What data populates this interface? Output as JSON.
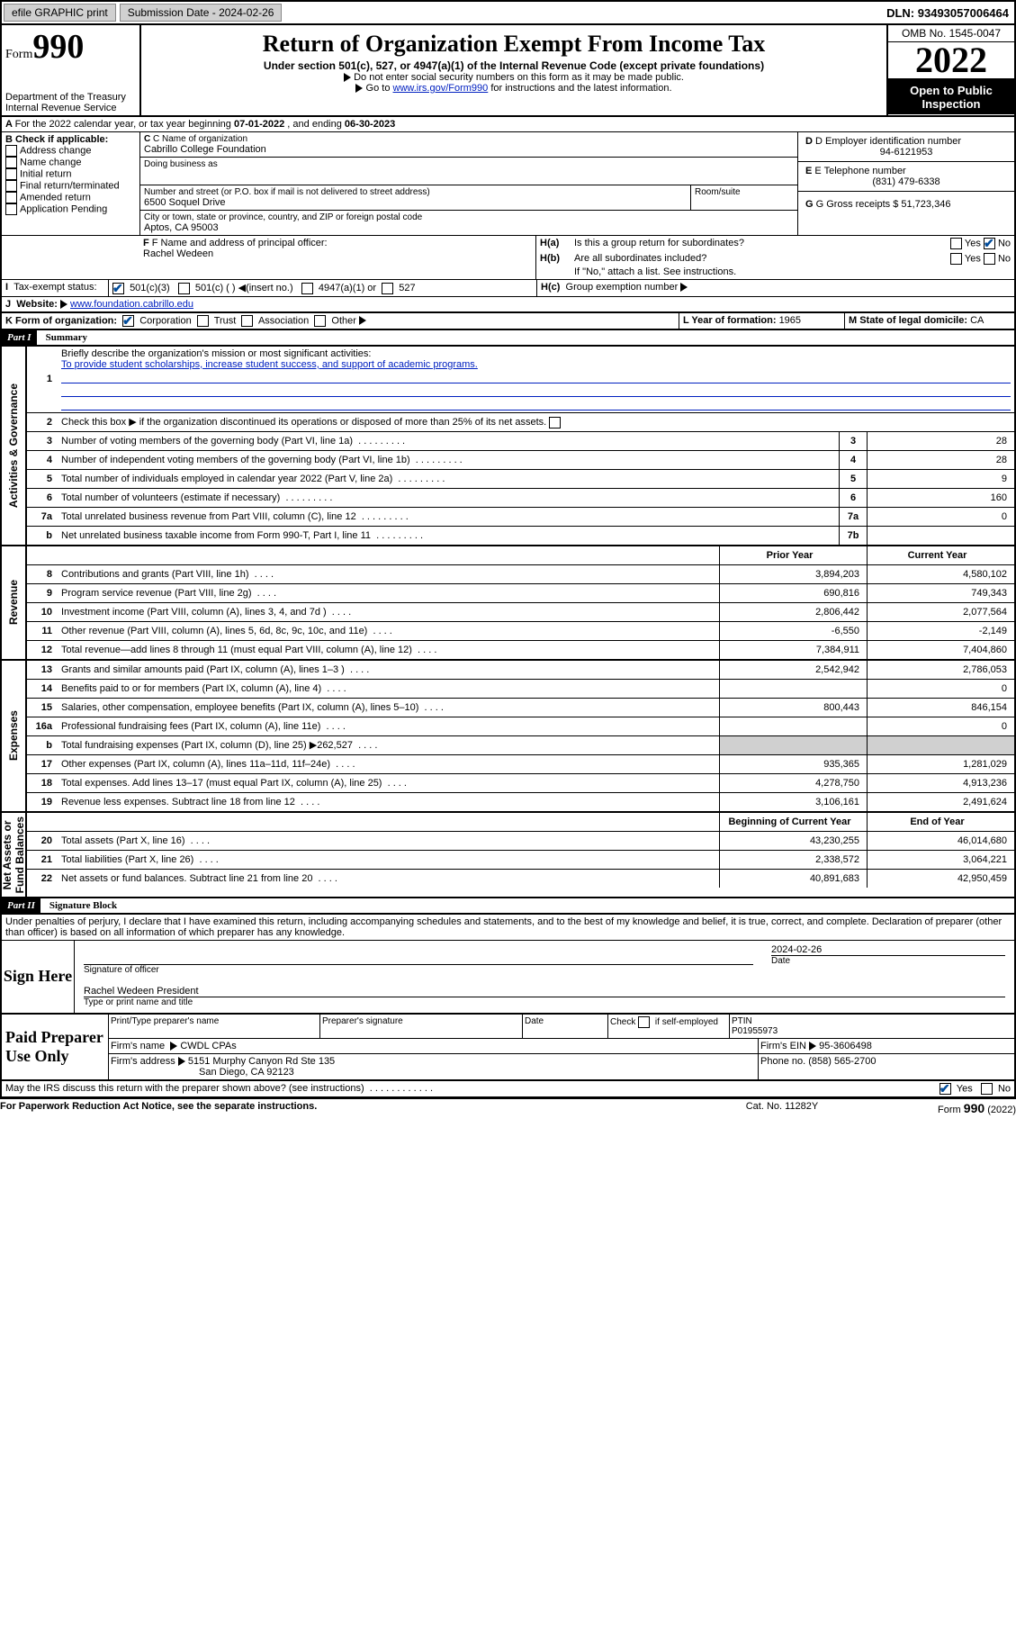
{
  "topbar": {
    "efile": "efile GRAPHIC print",
    "subdate_label": "Submission Date - ",
    "subdate": "2024-02-26",
    "dln_label": "DLN: ",
    "dln": "93493057006464"
  },
  "header": {
    "form_word": "Form",
    "form_num": "990",
    "dept": "Department of the Treasury",
    "irs": "Internal Revenue Service",
    "title": "Return of Organization Exempt From Income Tax",
    "sub1": "Under section 501(c), 527, or 4947(a)(1) of the Internal Revenue Code (except private foundations)",
    "sub2": "Do not enter social security numbers on this form as it may be made public.",
    "sub3_pre": "Go to ",
    "sub3_link": "www.irs.gov/Form990",
    "sub3_post": " for instructions and the latest information.",
    "omb": "OMB No. 1545-0047",
    "year": "2022",
    "open": "Open to Public Inspection"
  },
  "a_line": {
    "pre": "For the 2022 calendar year, or tax year beginning ",
    "begin": "07-01-2022",
    "mid": " , and ending ",
    "end": "06-30-2023"
  },
  "box_b": {
    "label": "B Check if applicable:",
    "items": [
      "Address change",
      "Name change",
      "Initial return",
      "Final return/terminated",
      "Amended return",
      "Application Pending"
    ]
  },
  "box_c": {
    "name_label": "C Name of organization",
    "name": "Cabrillo College Foundation",
    "dba_label": "Doing business as",
    "addr_label": "Number and street (or P.O. box if mail is not delivered to street address)",
    "room_label": "Room/suite",
    "addr": "6500 Soquel Drive",
    "city_label": "City or town, state or province, country, and ZIP or foreign postal code",
    "city": "Aptos, CA  95003"
  },
  "box_d": {
    "label": "D Employer identification number",
    "val": "94-6121953"
  },
  "box_e": {
    "label": "E Telephone number",
    "val": "(831) 479-6338"
  },
  "box_g": {
    "label": "G Gross receipts $ ",
    "val": "51,723,346"
  },
  "box_f": {
    "label": "F Name and address of principal officer:",
    "name": "Rachel Wedeen"
  },
  "box_h": {
    "a": "Is this a group return for subordinates?",
    "b": "Are all subordinates included?",
    "note": "If \"No,\" attach a list. See instructions.",
    "c": "Group exemption number",
    "yes": "Yes",
    "no": "No"
  },
  "box_i": {
    "label": "Tax-exempt status:",
    "opts": [
      "501(c)(3)",
      "501(c) (  )",
      "(insert no.)",
      "4947(a)(1) or",
      "527"
    ]
  },
  "box_j": {
    "label": "Website:",
    "val": "www.foundation.cabrillo.edu"
  },
  "box_k": {
    "label": "K Form of organization:",
    "opts": [
      "Corporation",
      "Trust",
      "Association",
      "Other"
    ]
  },
  "box_l": {
    "label": "L Year of formation: ",
    "val": "1965"
  },
  "box_m": {
    "label": "M State of legal domicile: ",
    "val": "CA"
  },
  "part1": {
    "hdr": "Part I",
    "title": "Summary",
    "l1_label": "Briefly describe the organization's mission or most significant activities:",
    "l1_text": "To provide student scholarships, increase student success, and support of academic programs.",
    "l2": "Check this box ▶  if the organization discontinued its operations or disposed of more than 25% of its net assets.",
    "rows_single": [
      {
        "n": "3",
        "t": "Number of voting members of the governing body (Part VI, line 1a)",
        "box": "3",
        "v": "28"
      },
      {
        "n": "4",
        "t": "Number of independent voting members of the governing body (Part VI, line 1b)",
        "box": "4",
        "v": "28"
      },
      {
        "n": "5",
        "t": "Total number of individuals employed in calendar year 2022 (Part V, line 2a)",
        "box": "5",
        "v": "9"
      },
      {
        "n": "6",
        "t": "Total number of volunteers (estimate if necessary)",
        "box": "6",
        "v": "160"
      },
      {
        "n": "7a",
        "t": "Total unrelated business revenue from Part VIII, column (C), line 12",
        "box": "7a",
        "v": "0"
      },
      {
        "n": "b",
        "t": "Net unrelated business taxable income from Form 990-T, Part I, line 11",
        "box": "7b",
        "v": ""
      }
    ],
    "col_prior": "Prior Year",
    "col_current": "Current Year",
    "revenue_rows": [
      {
        "n": "8",
        "t": "Contributions and grants (Part VIII, line 1h)",
        "p": "3,894,203",
        "c": "4,580,102"
      },
      {
        "n": "9",
        "t": "Program service revenue (Part VIII, line 2g)",
        "p": "690,816",
        "c": "749,343"
      },
      {
        "n": "10",
        "t": "Investment income (Part VIII, column (A), lines 3, 4, and 7d )",
        "p": "2,806,442",
        "c": "2,077,564"
      },
      {
        "n": "11",
        "t": "Other revenue (Part VIII, column (A), lines 5, 6d, 8c, 9c, 10c, and 11e)",
        "p": "-6,550",
        "c": "-2,149"
      },
      {
        "n": "12",
        "t": "Total revenue—add lines 8 through 11 (must equal Part VIII, column (A), line 12)",
        "p": "7,384,911",
        "c": "7,404,860"
      }
    ],
    "expense_rows": [
      {
        "n": "13",
        "t": "Grants and similar amounts paid (Part IX, column (A), lines 1–3 )",
        "p": "2,542,942",
        "c": "2,786,053"
      },
      {
        "n": "14",
        "t": "Benefits paid to or for members (Part IX, column (A), line 4)",
        "p": "",
        "c": "0"
      },
      {
        "n": "15",
        "t": "Salaries, other compensation, employee benefits (Part IX, column (A), lines 5–10)",
        "p": "800,443",
        "c": "846,154"
      },
      {
        "n": "16a",
        "t": "Professional fundraising fees (Part IX, column (A), line 11e)",
        "p": "",
        "c": "0"
      },
      {
        "n": "b",
        "t": "Total fundraising expenses (Part IX, column (D), line 25) ▶262,527",
        "p": "",
        "c": "",
        "shade": true
      },
      {
        "n": "17",
        "t": "Other expenses (Part IX, column (A), lines 11a–11d, 11f–24e)",
        "p": "935,365",
        "c": "1,281,029"
      },
      {
        "n": "18",
        "t": "Total expenses. Add lines 13–17 (must equal Part IX, column (A), line 25)",
        "p": "4,278,750",
        "c": "4,913,236"
      },
      {
        "n": "19",
        "t": "Revenue less expenses. Subtract line 18 from line 12",
        "p": "3,106,161",
        "c": "2,491,624"
      }
    ],
    "col_begin": "Beginning of Current Year",
    "col_end": "End of Year",
    "net_rows": [
      {
        "n": "20",
        "t": "Total assets (Part X, line 16)",
        "p": "43,230,255",
        "c": "46,014,680"
      },
      {
        "n": "21",
        "t": "Total liabilities (Part X, line 26)",
        "p": "2,338,572",
        "c": "3,064,221"
      },
      {
        "n": "22",
        "t": "Net assets or fund balances. Subtract line 21 from line 20",
        "p": "40,891,683",
        "c": "42,950,459"
      }
    ],
    "side_gov": "Activities & Governance",
    "side_rev": "Revenue",
    "side_exp": "Expenses",
    "side_net_a": "Net Assets or",
    "side_net_b": "Fund Balances"
  },
  "part2": {
    "hdr": "Part II",
    "title": "Signature Block",
    "decl": "Under penalties of perjury, I declare that I have examined this return, including accompanying schedules and statements, and to the best of my knowledge and belief, it is true, correct, and complete. Declaration of preparer (other than officer) is based on all information of which preparer has any knowledge.",
    "sign_here": "Sign Here",
    "sig_officer": "Signature of officer",
    "sig_date_label": "Date",
    "sig_date": "2024-02-26",
    "officer_name": "Rachel Wedeen  President",
    "type_name": "Type or print name and title",
    "paid": "Paid Preparer Use Only",
    "prep_name_label": "Print/Type preparer's name",
    "prep_sig_label": "Preparer's signature",
    "date_label": "Date",
    "check_label": "Check",
    "self_emp": "if self-employed",
    "ptin_label": "PTIN",
    "ptin": "P01955973",
    "firm_name_label": "Firm's name",
    "firm_name": "CWDL CPAs",
    "firm_ein_label": "Firm's EIN",
    "firm_ein": "95-3606498",
    "firm_addr_label": "Firm's address",
    "firm_addr1": "5151 Murphy Canyon Rd Ste 135",
    "firm_addr2": "San Diego, CA  92123",
    "phone_label": "Phone no. ",
    "phone": "(858) 565-2700",
    "discuss": "May the IRS discuss this return with the preparer shown above? (see instructions)"
  },
  "footer": {
    "left": "For Paperwork Reduction Act Notice, see the separate instructions.",
    "mid": "Cat. No. 11282Y",
    "right_form": "Form ",
    "right_num": "990",
    "right_year": " (2022)"
  }
}
